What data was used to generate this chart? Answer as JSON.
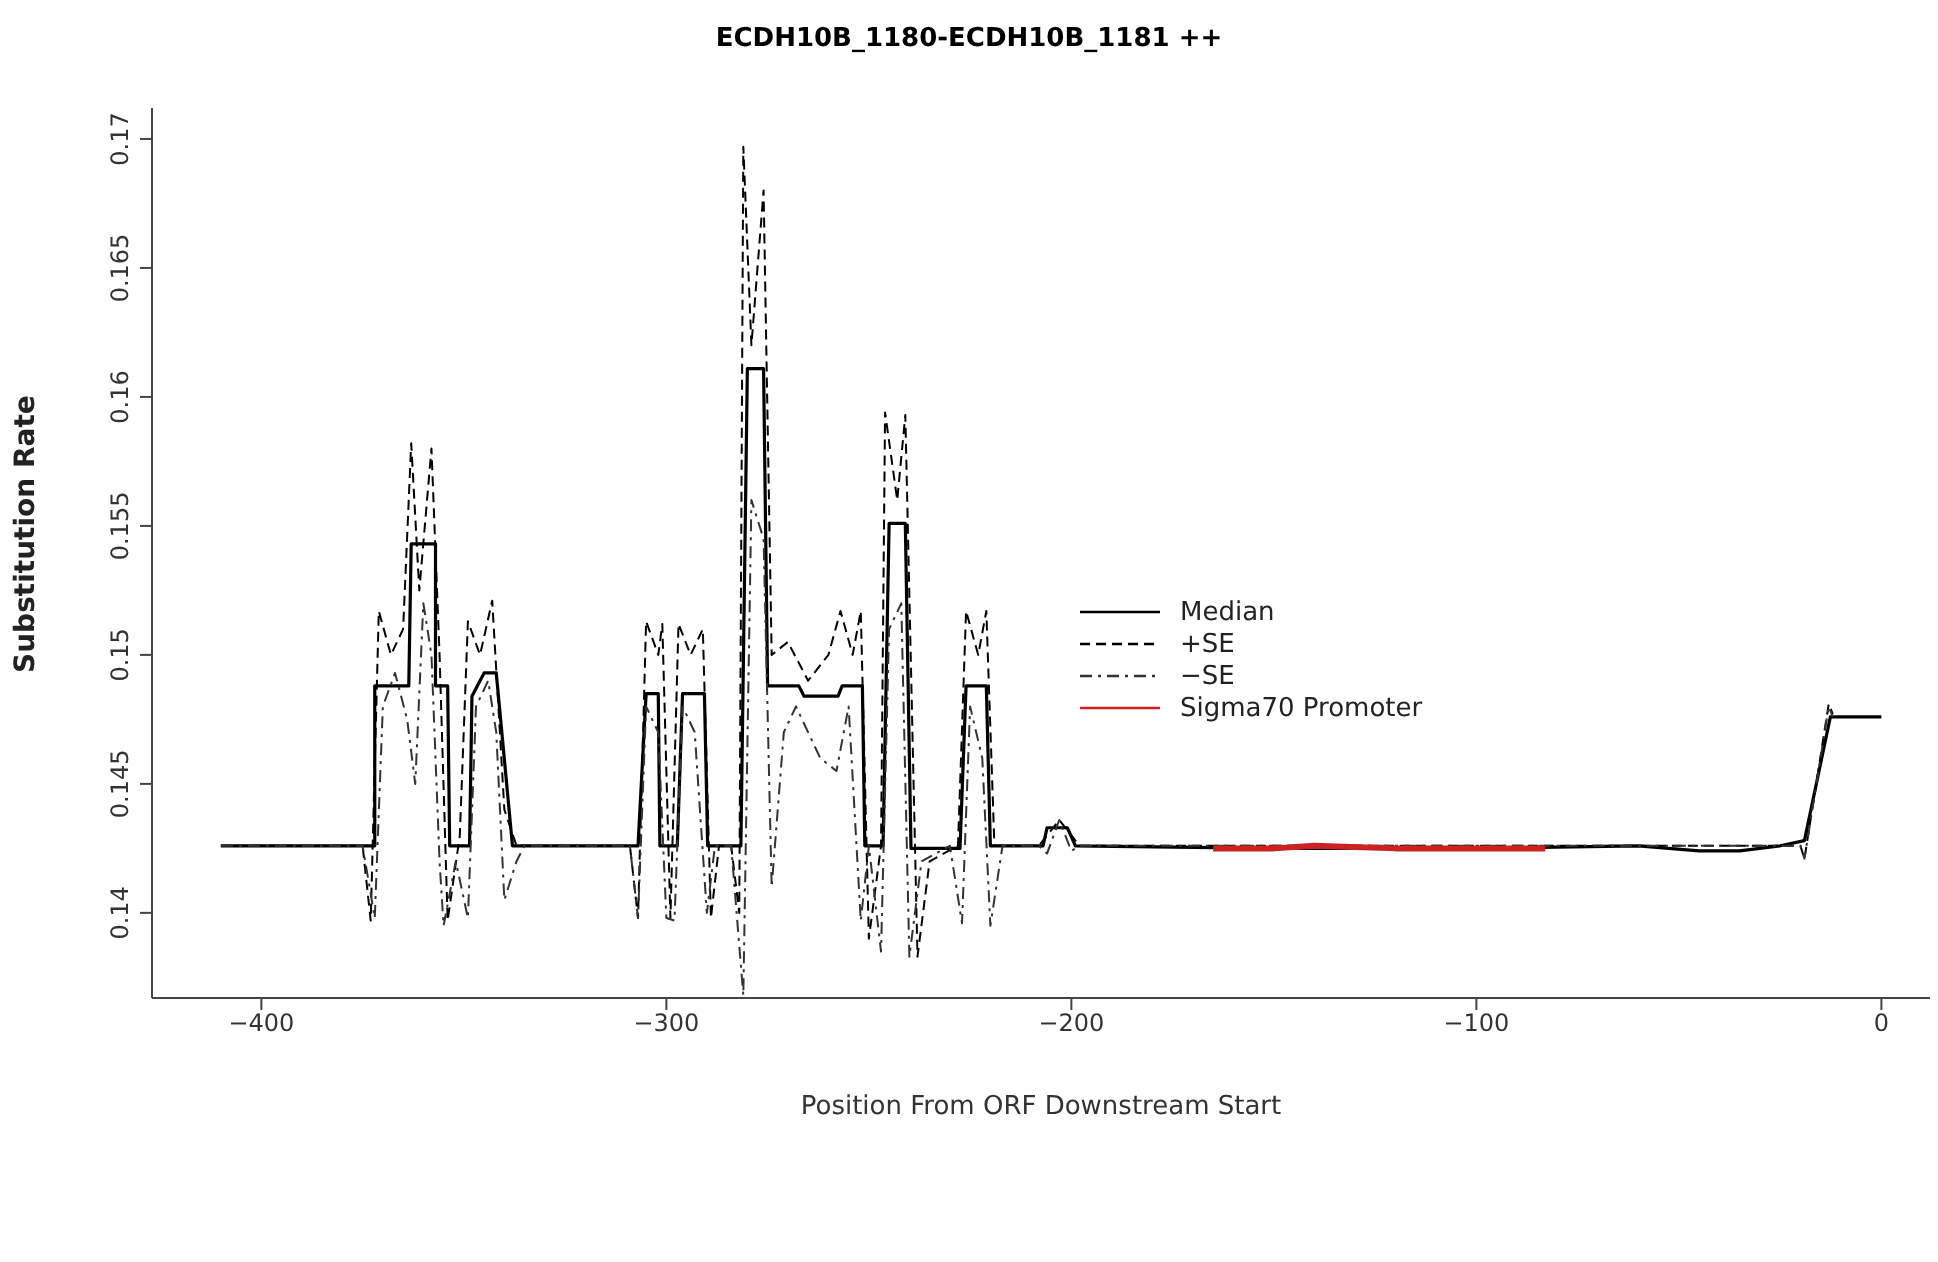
{
  "chart_data": {
    "type": "line",
    "title": "ECDH10B_1180-ECDH10B_1181 ++",
    "xlabel": "Position From ORF Downstream Start",
    "ylabel": "Substitution Rate",
    "xlim": [
      -427,
      12
    ],
    "xticks": [
      {
        "value": -400,
        "label": "−400"
      },
      {
        "value": -300,
        "label": "−300"
      },
      {
        "value": -200,
        "label": "−200"
      },
      {
        "value": -100,
        "label": "−100"
      },
      0
    ],
    "ylim": [
      0.1367,
      0.1712
    ],
    "yticks": [
      0.14,
      0.145,
      0.15,
      0.155,
      0.16,
      0.165,
      0.17
    ],
    "legend": "right",
    "marker": "none",
    "series": [
      {
        "name": "Median",
        "color": "#000000",
        "line_style": "solid",
        "x": [
          -410,
          -372,
          -372,
          -363.6,
          -363,
          -357,
          -357,
          -354,
          -353.5,
          -348.6,
          -348,
          -345,
          -342,
          -338,
          -307,
          -305,
          -302,
          -301.6,
          -297.3,
          -296,
          -290.6,
          -289.8,
          -281.6,
          -280,
          -276,
          -275,
          -267.3,
          -266,
          -257.6,
          -256.6,
          -251.6,
          -251,
          -246.5,
          -245,
          -241,
          -239.6,
          -227.5,
          -226,
          -221,
          -220,
          -207,
          -206,
          -201,
          -199,
          -150,
          -100,
          -60,
          -45,
          -35,
          -25,
          -19,
          -12.6,
          0
        ],
        "values": [
          0.1426,
          0.1426,
          0.1488,
          0.1488,
          0.1543,
          0.1543,
          0.1488,
          0.1488,
          0.1426,
          0.1426,
          0.1484,
          0.1493,
          0.1493,
          0.1426,
          0.1426,
          0.1485,
          0.1485,
          0.1426,
          0.1426,
          0.1485,
          0.1485,
          0.1426,
          0.1426,
          0.1611,
          0.1611,
          0.1488,
          0.1488,
          0.1484,
          0.1484,
          0.1488,
          0.1488,
          0.1426,
          0.1426,
          0.1551,
          0.1551,
          0.1425,
          0.1425,
          0.1488,
          0.1488,
          0.1426,
          0.1426,
          0.1433,
          0.1433,
          0.1426,
          0.1425,
          0.1425,
          0.1426,
          0.1424,
          0.1424,
          0.1426,
          0.1428,
          0.1476,
          0.1476
        ]
      },
      {
        "name": "+SE",
        "color": "#000000",
        "line_style": "dashed",
        "x": [
          -410,
          -375,
          -373,
          -371,
          -368,
          -365,
          -363,
          -361,
          -358,
          -356,
          -354,
          -351,
          -349,
          -346,
          -343,
          -340,
          -337,
          -309,
          -307,
          -305,
          -302,
          -301,
          -299,
          -297,
          -294,
          -291,
          -289,
          -287,
          -284,
          -282,
          -281,
          -279,
          -276,
          -274,
          -270,
          -265,
          -260,
          -257,
          -254,
          -252,
          -250,
          -247,
          -246,
          -243,
          -241,
          -238,
          -235,
          -228,
          -226,
          -223,
          -221,
          -219,
          -208,
          -206,
          -203,
          -200,
          -198,
          -20,
          -19,
          -13,
          -12
        ],
        "values": [
          0.1426,
          0.1426,
          0.1397,
          0.1517,
          0.15,
          0.151,
          0.1582,
          0.1525,
          0.158,
          0.15,
          0.1397,
          0.143,
          0.1513,
          0.15,
          0.1521,
          0.144,
          0.1426,
          0.1426,
          0.1398,
          0.1513,
          0.15,
          0.1512,
          0.1398,
          0.1512,
          0.15,
          0.151,
          0.1398,
          0.1426,
          0.1426,
          0.14,
          0.1697,
          0.162,
          0.168,
          0.15,
          0.1505,
          0.149,
          0.15,
          0.1517,
          0.15,
          0.1517,
          0.139,
          0.1426,
          0.1594,
          0.156,
          0.1593,
          0.1383,
          0.142,
          0.1426,
          0.1517,
          0.15,
          0.1517,
          0.1426,
          0.1426,
          0.143,
          0.1436,
          0.143,
          0.1426,
          0.1426,
          0.1421,
          0.1481,
          0.1477
        ]
      },
      {
        "name": "−SE",
        "color": "#333333",
        "line_style": "dotted",
        "x": [
          -410,
          -375,
          -372,
          -370,
          -367,
          -364,
          -362,
          -360,
          -358,
          -356,
          -355,
          -352,
          -349,
          -347,
          -344,
          -342,
          -340,
          -337,
          -335,
          -309,
          -307,
          -305,
          -302,
          -300,
          -298,
          -296,
          -293,
          -290,
          -288,
          -284,
          -281,
          -279,
          -276,
          -274,
          -271,
          -268,
          -262,
          -258,
          -255,
          -252,
          -250,
          -247,
          -245,
          -242,
          -240,
          -237,
          -230,
          -227,
          -225,
          -222,
          -220,
          -217,
          -208,
          -206,
          -203,
          -200,
          -198,
          -20,
          -19,
          -13,
          -12
        ],
        "values": [
          0.1426,
          0.1426,
          0.1398,
          0.148,
          0.1493,
          0.1475,
          0.145,
          0.152,
          0.15,
          0.142,
          0.1395,
          0.142,
          0.1398,
          0.148,
          0.149,
          0.147,
          0.1405,
          0.142,
          0.1426,
          0.1426,
          0.1398,
          0.148,
          0.147,
          0.1398,
          0.1397,
          0.148,
          0.147,
          0.14,
          0.1426,
          0.1426,
          0.1368,
          0.156,
          0.1545,
          0.141,
          0.147,
          0.148,
          0.146,
          0.1455,
          0.148,
          0.1397,
          0.1426,
          0.1385,
          0.151,
          0.152,
          0.1383,
          0.142,
          0.1426,
          0.1396,
          0.148,
          0.146,
          0.1395,
          0.1426,
          0.1426,
          0.1423,
          0.1436,
          0.1424,
          0.1426,
          0.1426,
          0.1421,
          0.148,
          0.1476
        ]
      },
      {
        "name": "Sigma70 Promoter",
        "color": "#cc2222",
        "line_style": "solid",
        "x": [
          -165,
          -150,
          -140,
          -120,
          -100,
          -83
        ],
        "values": [
          0.1425,
          0.1425,
          0.1426,
          0.1425,
          0.1425,
          0.1425
        ]
      }
    ]
  }
}
